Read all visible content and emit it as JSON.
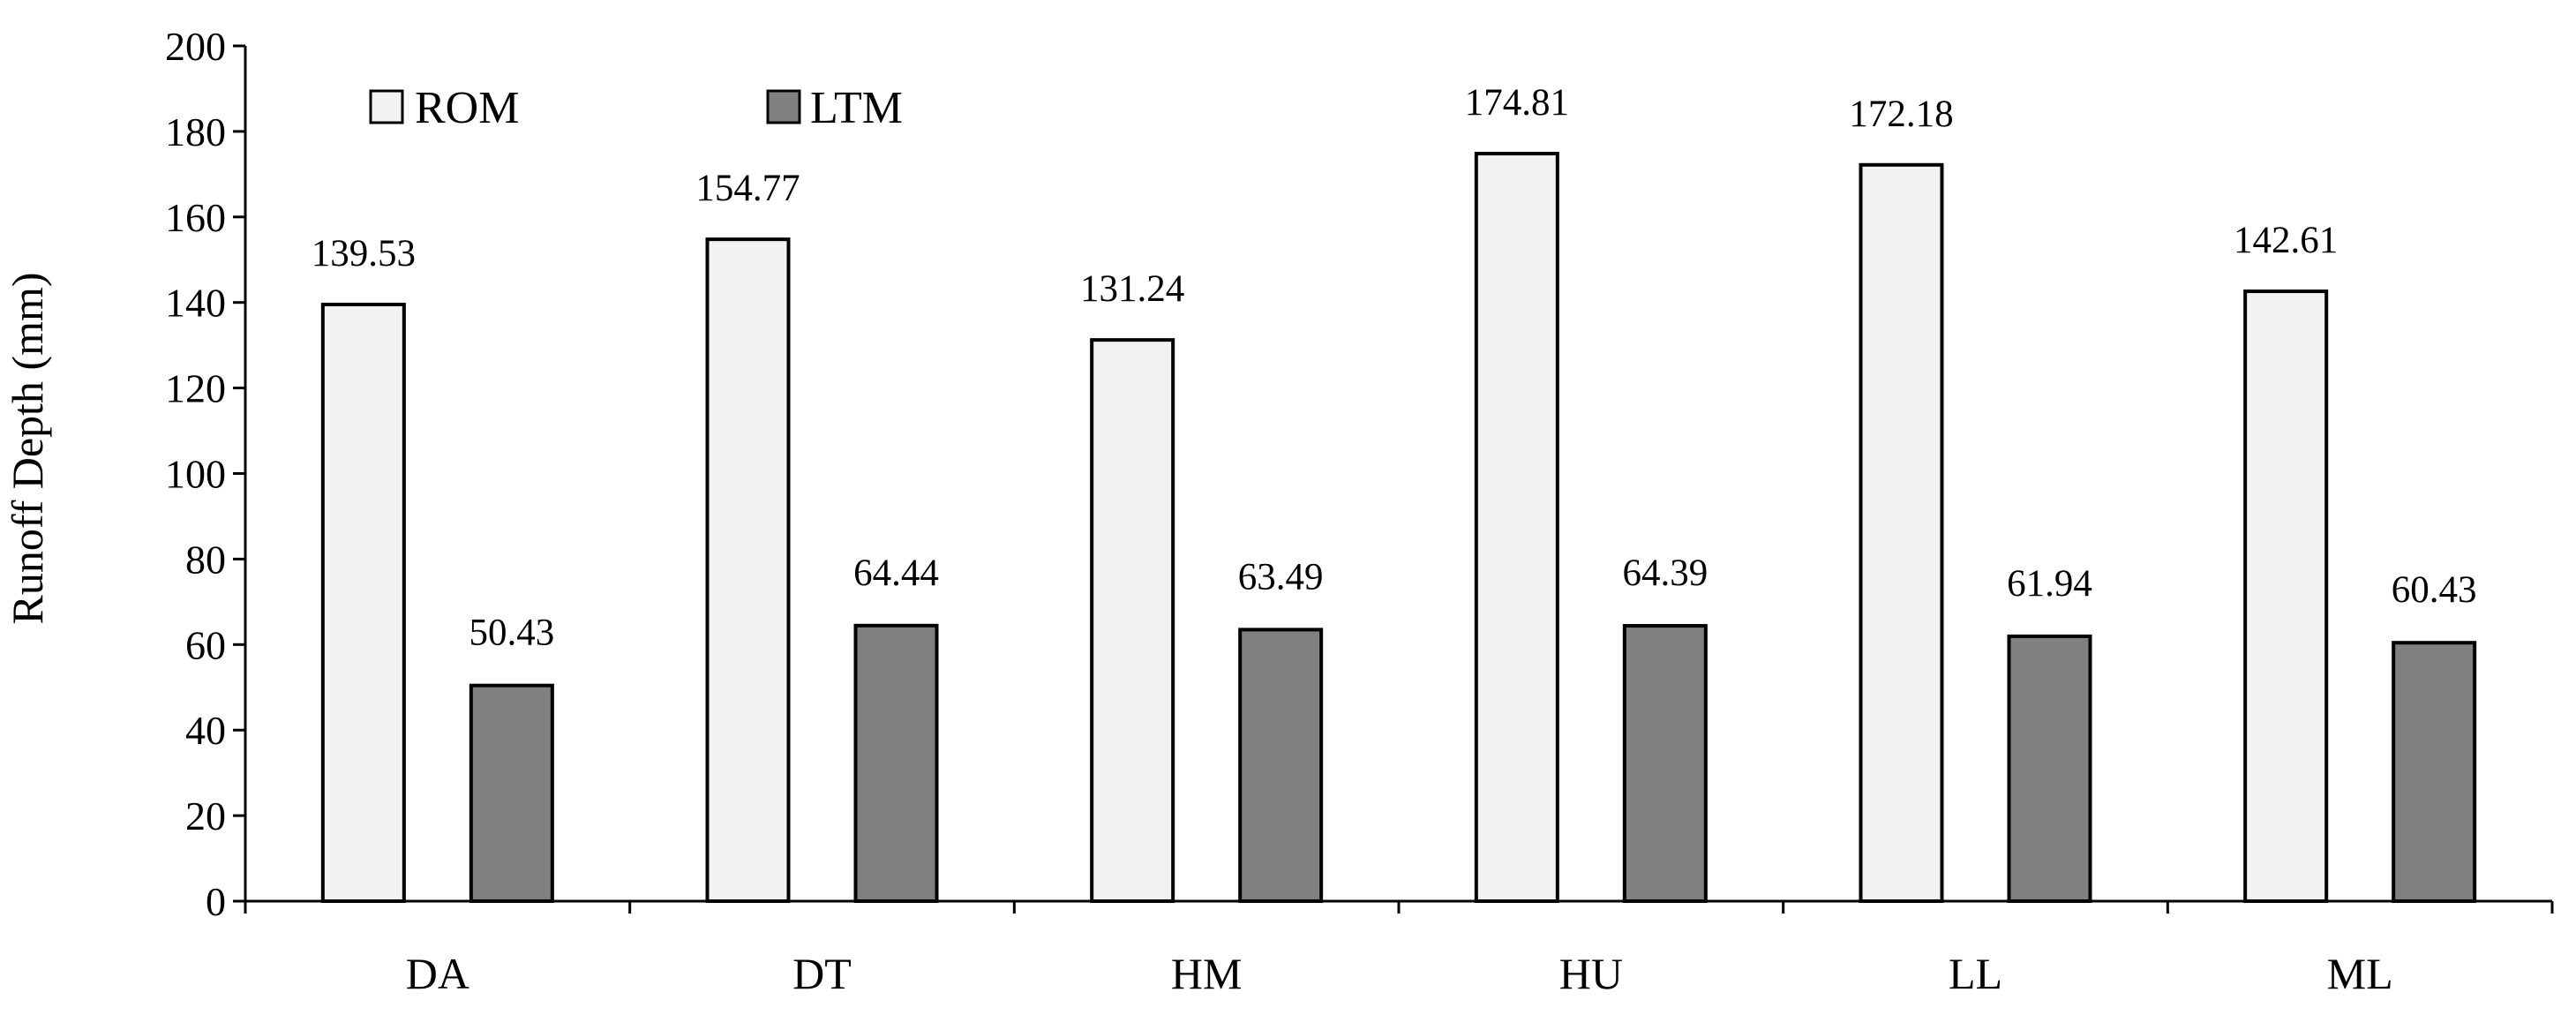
{
  "chart_data": {
    "type": "bar",
    "categories": [
      "DA",
      "DT",
      "HM",
      "HU",
      "LL",
      "ML"
    ],
    "series": [
      {
        "name": "ROM",
        "values": [
          139.53,
          154.77,
          131.24,
          174.81,
          172.18,
          142.61
        ],
        "color": "#f2f2f2"
      },
      {
        "name": "LTM",
        "values": [
          50.43,
          64.44,
          63.49,
          64.39,
          61.94,
          60.43
        ],
        "color": "#808080"
      }
    ],
    "data_labels": [
      [
        "139.53",
        "154.77",
        "131.24",
        "174.81",
        "172.18",
        "142.61"
      ],
      [
        "50.43",
        "64.44",
        "63.49",
        "64.39",
        "61.94",
        "60.43"
      ]
    ],
    "ylabel": "Runoff Depth (mm)",
    "ylim": [
      0,
      200
    ],
    "yticks": [
      0,
      20,
      40,
      60,
      80,
      100,
      120,
      140,
      160,
      180,
      200
    ],
    "ytick_labels": [
      "0",
      "20",
      "40",
      "60",
      "80",
      "100",
      "120",
      "140",
      "160",
      "180",
      "200"
    ],
    "legend": {
      "placement": "top-left",
      "entries": [
        "ROM",
        "LTM"
      ]
    },
    "grid": false,
    "bar_outline_color": "#000000"
  }
}
